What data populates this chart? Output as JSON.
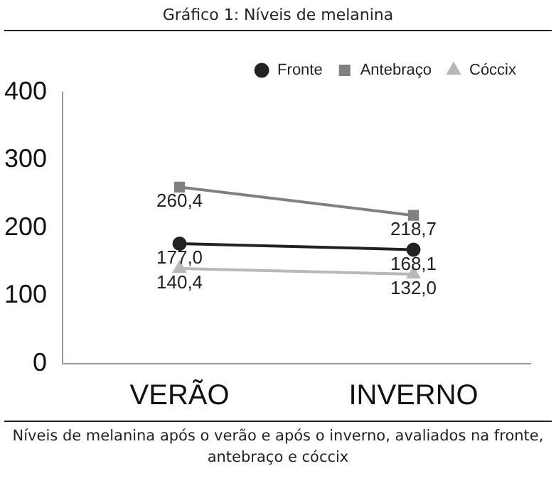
{
  "chart_data": {
    "type": "line",
    "title": "Gráfico 1: Níveis de melanina",
    "annotations": [
      "Níveis de melanina após o verão e após o inverno, avaliados na fronte, antebraço e cóccix"
    ],
    "categories": [
      "VERÃO",
      "INVERNO"
    ],
    "series": [
      {
        "name": "Fronte",
        "color": "#222222",
        "marker": "circle",
        "values": [
          177.0,
          168.1
        ],
        "value_labels": [
          "177,0",
          "168,1"
        ]
      },
      {
        "name": "Antebraço",
        "color": "#808080",
        "marker": "square",
        "values": [
          260.4,
          218.7
        ],
        "value_labels": [
          "260,4",
          "218,7"
        ]
      },
      {
        "name": "Cóccix",
        "color": "#b8b8b8",
        "marker": "triangle",
        "values": [
          140.4,
          132.0
        ],
        "value_labels": [
          "140,4",
          "132,0"
        ]
      }
    ],
    "ylim": [
      0,
      400
    ],
    "yticks": [
      0,
      100,
      200,
      300,
      400
    ],
    "grid": false,
    "legend": "top right"
  }
}
